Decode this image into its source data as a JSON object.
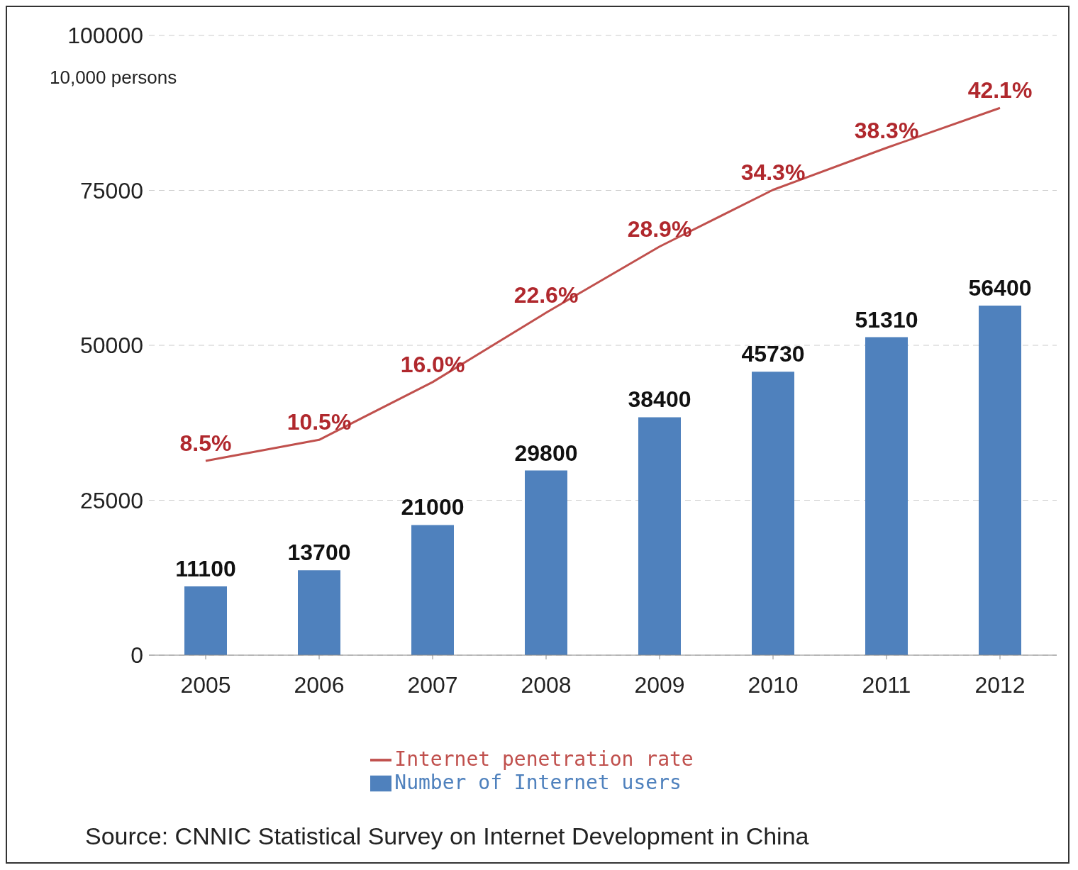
{
  "chart_data": {
    "type": "bar",
    "ylabel": "10,000 persons",
    "categories": [
      "2005",
      "2006",
      "2007",
      "2008",
      "2009",
      "2010",
      "2011",
      "2012"
    ],
    "series": [
      {
        "name": "Number of Internet users",
        "color": "#4f81bd",
        "values": [
          11100,
          13700,
          21000,
          29800,
          38400,
          45730,
          51310,
          56400
        ],
        "value_labels": [
          "11100",
          "13700",
          "21000",
          "29800",
          "38400",
          "45730",
          "51310",
          "56400"
        ]
      },
      {
        "name": "Internet penetration rate",
        "type": "line",
        "axis": "y2",
        "color": "#c0504d",
        "values": [
          8.5,
          10.5,
          16.0,
          22.6,
          28.9,
          34.3,
          38.3,
          42.1
        ],
        "value_labels": [
          "8.5%",
          "10.5%",
          "16.0%",
          "22.6%",
          "28.9%",
          "34.3%",
          "38.3%",
          "42.1%"
        ]
      }
    ],
    "ylim": [
      0,
      100000
    ],
    "yticks": [
      0,
      25000,
      50000,
      75000,
      100000
    ],
    "y2lim": [
      -10,
      49
    ],
    "grid": "y",
    "legend": "bottom",
    "marker": "none",
    "line_style": "solid",
    "annotations": [
      "Source:  CNNIC Statistical Survey on Internet Development in China"
    ]
  }
}
